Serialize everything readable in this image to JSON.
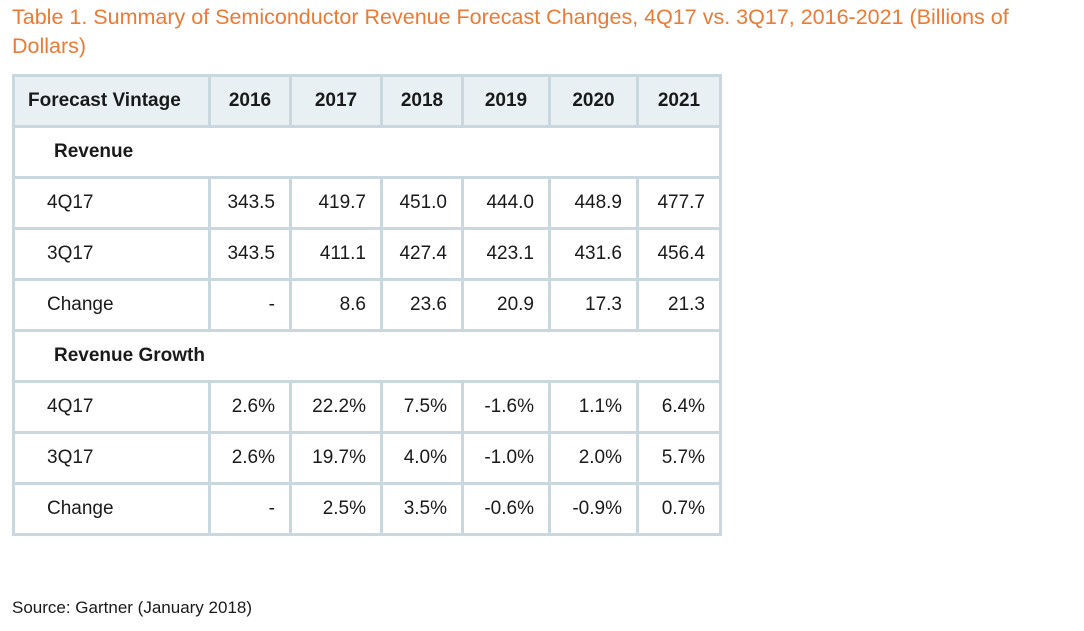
{
  "title": "Table 1. Summary of Semiconductor Revenue Forecast Changes, 4Q17 vs. 3Q17, 2016-2021 (Billions of Dollars)",
  "columns": [
    "Forecast Vintage",
    "2016",
    "2017",
    "2018",
    "2019",
    "2020",
    "2021"
  ],
  "sections": [
    {
      "label": "Revenue",
      "rows": [
        {
          "label": "4Q17",
          "values": [
            "343.5",
            "419.7",
            "451.0",
            "444.0",
            "448.9",
            "477.7"
          ]
        },
        {
          "label": "3Q17",
          "values": [
            "343.5",
            "411.1",
            "427.4",
            "423.1",
            "431.6",
            "456.4"
          ]
        },
        {
          "label": "Change",
          "values": [
            "-",
            "8.6",
            "23.6",
            "20.9",
            "17.3",
            "21.3"
          ]
        }
      ]
    },
    {
      "label": "Revenue Growth",
      "rows": [
        {
          "label": "4Q17",
          "values": [
            "2.6%",
            "22.2%",
            "7.5%",
            "-1.6%",
            "1.1%",
            "6.4%"
          ]
        },
        {
          "label": "3Q17",
          "values": [
            "2.6%",
            "19.7%",
            "4.0%",
            "-1.0%",
            "2.0%",
            "5.7%"
          ]
        },
        {
          "label": "Change",
          "values": [
            "-",
            "2.5%",
            "3.5%",
            "-0.6%",
            "-0.9%",
            "0.7%"
          ]
        }
      ]
    }
  ],
  "source": "Source: Gartner (January 2018)",
  "colors": {
    "title": "#ea7a34",
    "border": "#c9d8df",
    "header_bg": "#e9f0f3"
  }
}
